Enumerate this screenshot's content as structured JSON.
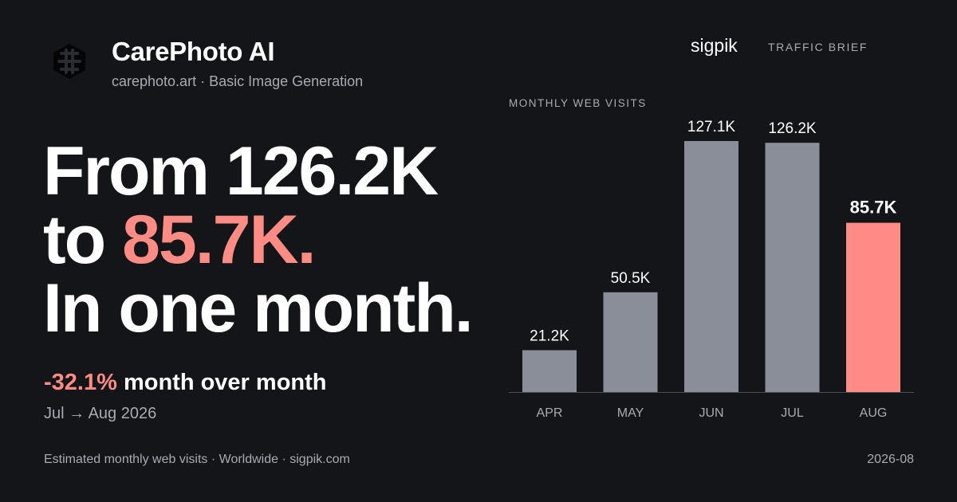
{
  "header": {
    "app_name": "CarePhoto AI",
    "subtitle": "carephoto.art · Basic Image Generation",
    "source": "sigpik",
    "badge": "TRAFFIC BRIEF"
  },
  "headline": {
    "line1": "From 126.2K",
    "line2_prefix": "to ",
    "line2_accent": "85.7K.",
    "line3": "In one month."
  },
  "change": {
    "percent": "-32.1%",
    "label": " month over month",
    "period": "Jul → Aug 2026"
  },
  "footer": {
    "note": "Estimated monthly web visits · Worldwide · sigpik.com",
    "date": "2026-08"
  },
  "colors": {
    "background": "#141518",
    "accent": "#ff8c84",
    "bar": "#8a8e99",
    "muted": "#a8abb3"
  },
  "icons": {
    "logo": "carephoto-logo-icon"
  },
  "chart_data": {
    "type": "bar",
    "title": "MONTHLY WEB VISITS",
    "categories": [
      "APR",
      "MAY",
      "JUN",
      "JUL",
      "AUG"
    ],
    "values": [
      21.2,
      50.5,
      127.1,
      126.2,
      85.7
    ],
    "value_labels": [
      "21.2K",
      "50.5K",
      "127.1K",
      "126.2K",
      "85.7K"
    ],
    "unit": "K",
    "highlight_index": 4,
    "ylim": [
      0,
      127.1
    ],
    "grid": false
  }
}
